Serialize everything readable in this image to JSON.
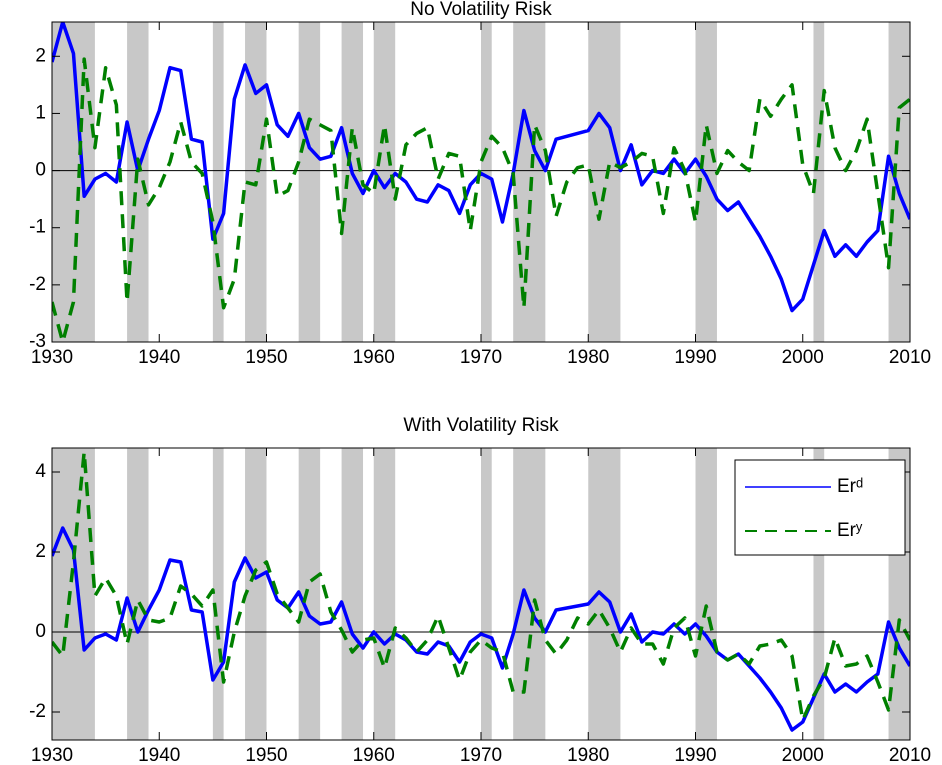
{
  "chart_data": [
    {
      "type": "line",
      "title": "No Volatility Risk",
      "x": [
        1930,
        1931,
        1932,
        1933,
        1934,
        1935,
        1936,
        1937,
        1938,
        1939,
        1940,
        1941,
        1942,
        1943,
        1944,
        1945,
        1946,
        1947,
        1948,
        1949,
        1950,
        1951,
        1952,
        1953,
        1954,
        1955,
        1956,
        1957,
        1958,
        1959,
        1960,
        1961,
        1962,
        1963,
        1964,
        1965,
        1966,
        1967,
        1968,
        1969,
        1970,
        1971,
        1972,
        1973,
        1974,
        1975,
        1976,
        1977,
        1978,
        1979,
        1980,
        1981,
        1982,
        1983,
        1984,
        1985,
        1986,
        1987,
        1988,
        1989,
        1990,
        1991,
        1992,
        1993,
        1994,
        1995,
        1996,
        1997,
        1998,
        1999,
        2000,
        2001,
        2002,
        2003,
        2004,
        2005,
        2006,
        2007,
        2008,
        2009,
        2010
      ],
      "series": [
        {
          "name": "Erᵈ",
          "color": "#0000ff",
          "dashed": false,
          "values": [
            1.9,
            2.6,
            2.05,
            -0.45,
            -0.15,
            -0.05,
            -0.2,
            0.85,
            0.0,
            0.55,
            1.05,
            1.8,
            1.75,
            0.55,
            0.5,
            -1.2,
            -0.75,
            1.25,
            1.85,
            1.35,
            1.5,
            0.8,
            0.6,
            1.0,
            0.4,
            0.2,
            0.25,
            0.75,
            -0.05,
            -0.4,
            0.0,
            -0.3,
            -0.05,
            -0.2,
            -0.5,
            -0.55,
            -0.25,
            -0.35,
            -0.75,
            -0.25,
            -0.05,
            -0.15,
            -0.9,
            -0.05,
            1.05,
            0.35,
            0.0,
            0.55,
            0.6,
            0.65,
            0.7,
            1.0,
            0.75,
            0.0,
            0.45,
            -0.25,
            0.0,
            -0.05,
            0.2,
            -0.05,
            0.2,
            -0.1,
            -0.5,
            -0.7,
            -0.55,
            -0.85,
            -1.15,
            -1.5,
            -1.9,
            -2.45,
            -2.25,
            -1.65,
            -1.05,
            -1.5,
            -1.3,
            -1.5,
            -1.25,
            -1.05,
            0.25,
            -0.4,
            -0.85
          ]
        },
        {
          "name": "Erʸ",
          "color": "#008000",
          "dashed": true,
          "values": [
            -2.3,
            -3.0,
            -2.3,
            1.95,
            0.4,
            1.8,
            1.15,
            -2.3,
            0.2,
            -0.6,
            -0.3,
            0.15,
            0.85,
            0.15,
            -0.05,
            -0.9,
            -2.4,
            -1.9,
            -0.2,
            -0.25,
            0.9,
            -0.45,
            -0.35,
            0.15,
            0.9,
            0.8,
            0.7,
            -1.1,
            0.75,
            -0.25,
            -0.4,
            0.8,
            -0.5,
            0.45,
            0.65,
            0.75,
            -0.15,
            0.3,
            0.25,
            -1.05,
            0.15,
            0.6,
            0.4,
            -0.05,
            -2.4,
            0.8,
            0.35,
            -0.8,
            -0.2,
            0.05,
            0.1,
            -0.85,
            0.15,
            0.05,
            0.15,
            0.3,
            0.25,
            -0.75,
            0.4,
            0.0,
            -0.9,
            0.8,
            -0.05,
            0.35,
            0.15,
            0.0,
            1.25,
            0.95,
            1.25,
            1.5,
            0.1,
            -0.4,
            1.4,
            0.4,
            0.0,
            0.35,
            0.9,
            -0.4,
            -1.7,
            1.1,
            1.25
          ]
        }
      ],
      "shaded_periods": [
        [
          1930,
          1934
        ],
        [
          1937,
          1939
        ],
        [
          1945,
          1946
        ],
        [
          1948,
          1950
        ],
        [
          1953,
          1955
        ],
        [
          1957,
          1959
        ],
        [
          1960,
          1962
        ],
        [
          1970,
          1971
        ],
        [
          1973,
          1976
        ],
        [
          1980,
          1983
        ],
        [
          1990,
          1992
        ],
        [
          2001,
          2002
        ],
        [
          2008,
          2010
        ]
      ],
      "shade_color": "#c8c8c8",
      "zero_line": true,
      "xlim": [
        1930,
        2010
      ],
      "xticks": [
        1930,
        1940,
        1950,
        1960,
        1970,
        1980,
        1990,
        2000,
        2010
      ],
      "ylim": [
        -3,
        2.6
      ],
      "yticks": [
        -3,
        -2,
        -1,
        0,
        1,
        2
      ],
      "legend": false
    },
    {
      "type": "line",
      "title": "With Volatility Risk",
      "x": [
        1930,
        1931,
        1932,
        1933,
        1934,
        1935,
        1936,
        1937,
        1938,
        1939,
        1940,
        1941,
        1942,
        1943,
        1944,
        1945,
        1946,
        1947,
        1948,
        1949,
        1950,
        1951,
        1952,
        1953,
        1954,
        1955,
        1956,
        1957,
        1958,
        1959,
        1960,
        1961,
        1962,
        1963,
        1964,
        1965,
        1966,
        1967,
        1968,
        1969,
        1970,
        1971,
        1972,
        1973,
        1974,
        1975,
        1976,
        1977,
        1978,
        1979,
        1980,
        1981,
        1982,
        1983,
        1984,
        1985,
        1986,
        1987,
        1988,
        1989,
        1990,
        1991,
        1992,
        1993,
        1994,
        1995,
        1996,
        1997,
        1998,
        1999,
        2000,
        2001,
        2002,
        2003,
        2004,
        2005,
        2006,
        2007,
        2008,
        2009,
        2010
      ],
      "series": [
        {
          "name": "Erᵈ",
          "color": "#0000ff",
          "dashed": false,
          "values": [
            1.9,
            2.6,
            2.05,
            -0.45,
            -0.15,
            -0.05,
            -0.2,
            0.85,
            0.0,
            0.55,
            1.05,
            1.8,
            1.75,
            0.55,
            0.5,
            -1.2,
            -0.75,
            1.25,
            1.85,
            1.35,
            1.5,
            0.8,
            0.6,
            1.0,
            0.4,
            0.2,
            0.25,
            0.75,
            -0.05,
            -0.4,
            0.0,
            -0.3,
            -0.05,
            -0.2,
            -0.5,
            -0.55,
            -0.25,
            -0.35,
            -0.75,
            -0.25,
            -0.05,
            -0.15,
            -0.9,
            -0.05,
            1.05,
            0.35,
            0.0,
            0.55,
            0.6,
            0.65,
            0.7,
            1.0,
            0.75,
            0.0,
            0.45,
            -0.25,
            0.0,
            -0.05,
            0.2,
            -0.05,
            0.2,
            -0.1,
            -0.5,
            -0.7,
            -0.55,
            -0.85,
            -1.15,
            -1.5,
            -1.9,
            -2.45,
            -2.25,
            -1.65,
            -1.05,
            -1.5,
            -1.3,
            -1.5,
            -1.25,
            -1.05,
            0.25,
            -0.4,
            -0.85
          ]
        },
        {
          "name": "Erʸ",
          "color": "#008000",
          "dashed": true,
          "values": [
            -0.25,
            -0.6,
            1.75,
            4.5,
            0.9,
            1.35,
            0.9,
            -0.3,
            0.8,
            0.3,
            0.25,
            0.35,
            1.15,
            0.95,
            0.65,
            1.05,
            -1.25,
            0.0,
            0.9,
            1.55,
            1.75,
            0.95,
            0.6,
            0.25,
            1.25,
            1.45,
            0.5,
            0.05,
            -0.5,
            -0.2,
            -0.15,
            -0.9,
            0.1,
            -0.15,
            -0.5,
            -0.2,
            0.4,
            -0.4,
            -1.2,
            -0.5,
            -0.2,
            -0.4,
            -0.5,
            -1.5,
            -1.5,
            0.8,
            -0.2,
            -0.55,
            -0.2,
            0.35,
            0.2,
            0.55,
            0.1,
            -0.5,
            0.1,
            -0.3,
            -0.3,
            -0.8,
            0.1,
            0.35,
            -0.6,
            0.65,
            -0.5,
            -0.7,
            -0.55,
            -0.8,
            -0.35,
            -0.3,
            -0.2,
            -0.6,
            -2.2,
            -1.6,
            -1.15,
            -0.15,
            -0.85,
            -0.8,
            -0.6,
            -1.25,
            -1.95,
            0.3,
            -0.2
          ]
        }
      ],
      "shaded_periods": [
        [
          1930,
          1934
        ],
        [
          1937,
          1939
        ],
        [
          1945,
          1946
        ],
        [
          1948,
          1950
        ],
        [
          1953,
          1955
        ],
        [
          1957,
          1959
        ],
        [
          1960,
          1962
        ],
        [
          1970,
          1971
        ],
        [
          1973,
          1976
        ],
        [
          1980,
          1983
        ],
        [
          1990,
          1992
        ],
        [
          2001,
          2002
        ],
        [
          2008,
          2010
        ]
      ],
      "shade_color": "#c8c8c8",
      "zero_line": true,
      "xlim": [
        1930,
        2010
      ],
      "xticks": [
        1930,
        1940,
        1950,
        1960,
        1970,
        1980,
        1990,
        2000,
        2010
      ],
      "ylim": [
        -2.7,
        4.6
      ],
      "yticks": [
        -2,
        0,
        2,
        4
      ],
      "legend": "northeast"
    }
  ]
}
